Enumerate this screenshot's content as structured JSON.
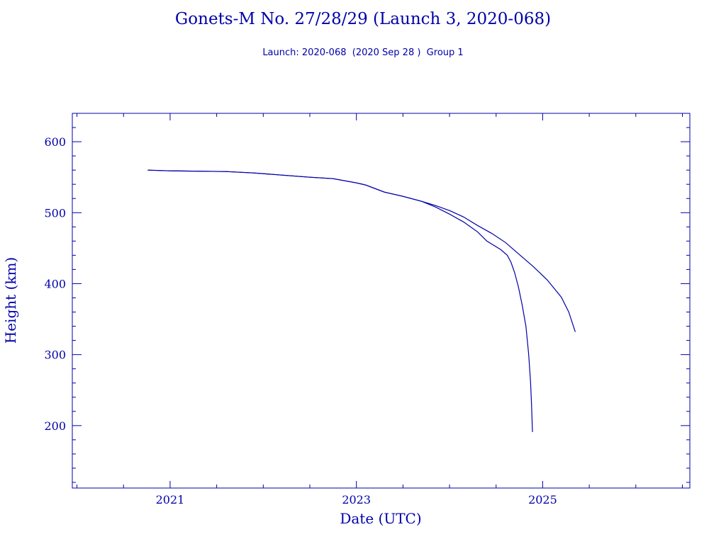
{
  "header": {
    "title": "Gonets-M No. 27/28/29 (Launch 3, 2020-068)",
    "subtitle": "Launch: 2020-068  (2020 Sep 28 )  Group 1"
  },
  "colors": {
    "ink": "#0000aa"
  },
  "chart_data": {
    "type": "line",
    "title": "Gonets-M No. 27/28/29 (Launch 3, 2020-068)",
    "subtitle": "Launch: 2020-068  (2020 Sep 28 )  Group 1",
    "xlabel": "Date (UTC)",
    "ylabel": "Height (km)",
    "xlim": [
      2019.95,
      2026.58
    ],
    "ylim": [
      112,
      640
    ],
    "x_ticks": [
      2021,
      2023,
      2025
    ],
    "y_ticks": [
      200,
      300,
      400,
      500,
      600
    ],
    "grid": false,
    "series": [
      {
        "values": [
          [
            2020.76,
            560
          ],
          [
            2021.0,
            559
          ],
          [
            2021.3,
            558.5
          ],
          [
            2021.6,
            558
          ],
          [
            2021.9,
            556
          ],
          [
            2022.2,
            553
          ],
          [
            2022.5,
            550
          ],
          [
            2022.75,
            548
          ],
          [
            2023.0,
            542
          ],
          [
            2023.1,
            539
          ],
          [
            2023.2,
            534
          ],
          [
            2023.3,
            529
          ],
          [
            2023.5,
            523
          ],
          [
            2023.7,
            516
          ],
          [
            2023.85,
            508
          ],
          [
            2024.0,
            498
          ],
          [
            2024.15,
            487
          ],
          [
            2024.3,
            473
          ],
          [
            2024.4,
            460
          ],
          [
            2024.55,
            448
          ],
          [
            2024.62,
            440
          ],
          [
            2024.66,
            430
          ],
          [
            2024.7,
            415
          ],
          [
            2024.74,
            395
          ],
          [
            2024.78,
            370
          ],
          [
            2024.82,
            340
          ],
          [
            2024.85,
            300
          ],
          [
            2024.87,
            260
          ],
          [
            2024.88,
            230
          ],
          [
            2024.89,
            191
          ]
        ]
      },
      {
        "values": [
          [
            2020.76,
            560
          ],
          [
            2021.0,
            559
          ],
          [
            2021.3,
            558.5
          ],
          [
            2021.6,
            558
          ],
          [
            2021.9,
            556
          ],
          [
            2022.2,
            553
          ],
          [
            2022.5,
            550
          ],
          [
            2022.75,
            548
          ],
          [
            2023.0,
            542
          ],
          [
            2023.1,
            539
          ],
          [
            2023.2,
            534
          ],
          [
            2023.3,
            529
          ],
          [
            2023.5,
            523
          ],
          [
            2023.7,
            516
          ],
          [
            2023.85,
            510
          ],
          [
            2024.0,
            503
          ],
          [
            2024.15,
            494
          ],
          [
            2024.3,
            482
          ],
          [
            2024.45,
            471
          ],
          [
            2024.6,
            458
          ],
          [
            2024.75,
            441
          ],
          [
            2024.9,
            424
          ],
          [
            2025.05,
            405
          ],
          [
            2025.2,
            381
          ],
          [
            2025.28,
            360
          ],
          [
            2025.35,
            332
          ]
        ]
      }
    ]
  }
}
